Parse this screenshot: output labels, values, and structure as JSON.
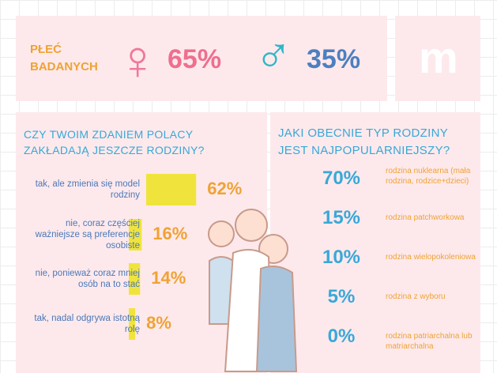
{
  "gender": {
    "label_lines": [
      "PŁEĆ",
      "BADANYCH"
    ],
    "female": "65%",
    "male": "35%"
  },
  "question1": {
    "title": "CZY TWOIM ZDANIEM POLACY ZAKŁADAJĄ JESZCZE RODZINY?",
    "answers": [
      "tak, ale zmienia się model rodziny",
      "nie, coraz częściej ważniejsze są preferencje osobiste",
      "nie, ponieważ coraz mniej osób na to stać",
      "tak, nadal odgrywa istotną rolę"
    ],
    "values": [
      62,
      16,
      14,
      8
    ],
    "value_labels": [
      "62%",
      "16%",
      "14%",
      "8%"
    ],
    "color": "#f0e43c"
  },
  "question2": {
    "title": "JAKI OBECNIE TYP RODZINY JEST NAJPOPULARNIEJSZY?",
    "items": [
      {
        "percent": "70%",
        "label": "rodzina nuklearna (mała rodzina, rodzice+dzieci)"
      },
      {
        "percent": "15%",
        "label": "rodzina patchworkowa"
      },
      {
        "percent": "10%",
        "label": "rodzina wielopokoleniowa"
      },
      {
        "percent": "5%",
        "label": "rodzina z wyboru"
      },
      {
        "percent": "0%",
        "label": "rodzina patriarchalna lub matriarchalna"
      }
    ]
  }
}
